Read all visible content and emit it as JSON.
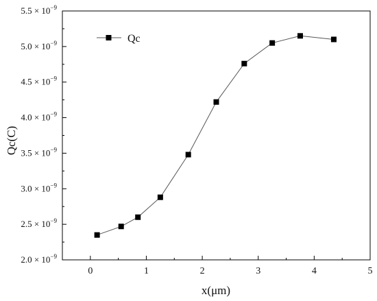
{
  "chart_data": {
    "type": "line",
    "title": "",
    "xlabel": "x(μm)",
    "ylabel": "Qc(C)",
    "xlim": [
      -0.5,
      5
    ],
    "ylim": [
      2e-09,
      5.5e-09
    ],
    "x_ticks": [
      0,
      1,
      2,
      3,
      4,
      5
    ],
    "x_tick_labels": [
      "0",
      "1",
      "2",
      "3",
      "4",
      "5"
    ],
    "y_ticks": [
      2e-09,
      2.5e-09,
      3e-09,
      3.5e-09,
      4e-09,
      4.5e-09,
      5e-09,
      5.5e-09
    ],
    "y_tick_mantissas": [
      "2.0",
      "2.5",
      "3.0",
      "3.5",
      "4.0",
      "4.5",
      "5.0",
      "5.5"
    ],
    "y_tick_multiplier": "× 10",
    "y_tick_exponent": "−9",
    "grid": false,
    "legend_position": "top-left",
    "series": [
      {
        "name": "Qc",
        "color": "#000000",
        "marker": "square",
        "x": [
          0.12,
          0.55,
          0.85,
          1.25,
          1.75,
          2.25,
          2.75,
          3.25,
          3.75,
          4.35
        ],
        "y": [
          2.35e-09,
          2.47e-09,
          2.6e-09,
          2.88e-09,
          3.48e-09,
          4.22e-09,
          4.76e-09,
          5.05e-09,
          5.15e-09,
          5.1e-09
        ]
      }
    ]
  }
}
